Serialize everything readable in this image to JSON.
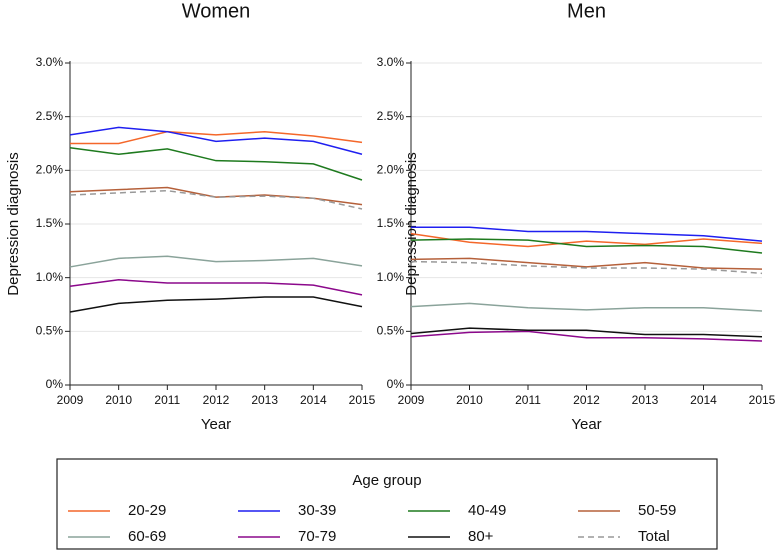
{
  "chart_data": [
    {
      "type": "line",
      "title": "Women",
      "x_label": "Year",
      "y_label": "Depression diagnosis",
      "x": [
        2009,
        2010,
        2011,
        2012,
        2013,
        2014,
        2015
      ],
      "xlim": [
        2009,
        2015
      ],
      "xticks": [
        2009,
        2010,
        2011,
        2012,
        2013,
        2014,
        2015
      ],
      "ylim": [
        0,
        3
      ],
      "yticks": [
        {
          "value": 0,
          "label": "0%"
        },
        {
          "value": 0.5,
          "label": "0.5%"
        },
        {
          "value": 1,
          "label": "1.0%"
        },
        {
          "value": 1.5,
          "label": "1.5%"
        },
        {
          "value": 2,
          "label": "2.0%"
        },
        {
          "value": 2.5,
          "label": "2.5%"
        },
        {
          "value": 3,
          "label": "3.0%"
        }
      ],
      "grid": true,
      "series": [
        {
          "name": "20-29",
          "color": "#f4672a",
          "values": [
            2.25,
            2.25,
            2.36,
            2.33,
            2.36,
            2.32,
            2.26
          ]
        },
        {
          "name": "30-39",
          "color": "#1f1ff0",
          "values": [
            2.33,
            2.4,
            2.36,
            2.27,
            2.3,
            2.27,
            2.15
          ]
        },
        {
          "name": "40-49",
          "color": "#1e7a1e",
          "values": [
            2.21,
            2.15,
            2.2,
            2.09,
            2.08,
            2.06,
            1.91
          ]
        },
        {
          "name": "50-59",
          "color": "#b5603a",
          "values": [
            1.8,
            1.82,
            1.84,
            1.75,
            1.77,
            1.74,
            1.68
          ]
        },
        {
          "name": "60-69",
          "color": "#8aa39a",
          "values": [
            1.1,
            1.18,
            1.2,
            1.15,
            1.16,
            1.18,
            1.11
          ]
        },
        {
          "name": "70-79",
          "color": "#8b088b",
          "values": [
            0.92,
            0.98,
            0.95,
            0.95,
            0.95,
            0.93,
            0.84
          ]
        },
        {
          "name": "80+",
          "color": "#111111",
          "values": [
            0.68,
            0.76,
            0.79,
            0.8,
            0.82,
            0.82,
            0.73
          ]
        },
        {
          "name": "Total",
          "color": "#999999",
          "dashed": true,
          "values": [
            1.77,
            1.79,
            1.81,
            1.75,
            1.76,
            1.74,
            1.64
          ]
        }
      ]
    },
    {
      "type": "line",
      "title": "Men",
      "x_label": "Year",
      "y_label": "Depression diagnosis",
      "x": [
        2009,
        2010,
        2011,
        2012,
        2013,
        2014,
        2015
      ],
      "xlim": [
        2009,
        2015
      ],
      "xticks": [
        2009,
        2010,
        2011,
        2012,
        2013,
        2014,
        2015
      ],
      "ylim": [
        0,
        3
      ],
      "yticks": [
        {
          "value": 0,
          "label": "0%"
        },
        {
          "value": 0.5,
          "label": "0.5%"
        },
        {
          "value": 1,
          "label": "1.0%"
        },
        {
          "value": 1.5,
          "label": "1.5%"
        },
        {
          "value": 2,
          "label": "2.0%"
        },
        {
          "value": 2.5,
          "label": "2.5%"
        },
        {
          "value": 3,
          "label": "3.0%"
        }
      ],
      "grid": true,
      "series": [
        {
          "name": "20-29",
          "color": "#f4672a",
          "values": [
            1.41,
            1.33,
            1.29,
            1.34,
            1.31,
            1.36,
            1.32
          ]
        },
        {
          "name": "30-39",
          "color": "#1f1ff0",
          "values": [
            1.47,
            1.47,
            1.43,
            1.43,
            1.41,
            1.39,
            1.34
          ]
        },
        {
          "name": "40-49",
          "color": "#1e7a1e",
          "values": [
            1.35,
            1.36,
            1.35,
            1.29,
            1.3,
            1.29,
            1.23
          ]
        },
        {
          "name": "50-59",
          "color": "#b5603a",
          "values": [
            1.17,
            1.18,
            1.14,
            1.1,
            1.14,
            1.09,
            1.08
          ]
        },
        {
          "name": "60-69",
          "color": "#8aa39a",
          "values": [
            0.73,
            0.76,
            0.72,
            0.7,
            0.72,
            0.72,
            0.69
          ]
        },
        {
          "name": "70-79",
          "color": "#8b088b",
          "values": [
            0.45,
            0.49,
            0.5,
            0.44,
            0.44,
            0.43,
            0.41
          ]
        },
        {
          "name": "80+",
          "color": "#111111",
          "values": [
            0.48,
            0.53,
            0.51,
            0.51,
            0.47,
            0.47,
            0.45
          ]
        },
        {
          "name": "Total",
          "color": "#999999",
          "dashed": true,
          "values": [
            1.15,
            1.14,
            1.11,
            1.09,
            1.09,
            1.08,
            1.04
          ]
        }
      ]
    }
  ],
  "legend": {
    "title": "Age group"
  }
}
